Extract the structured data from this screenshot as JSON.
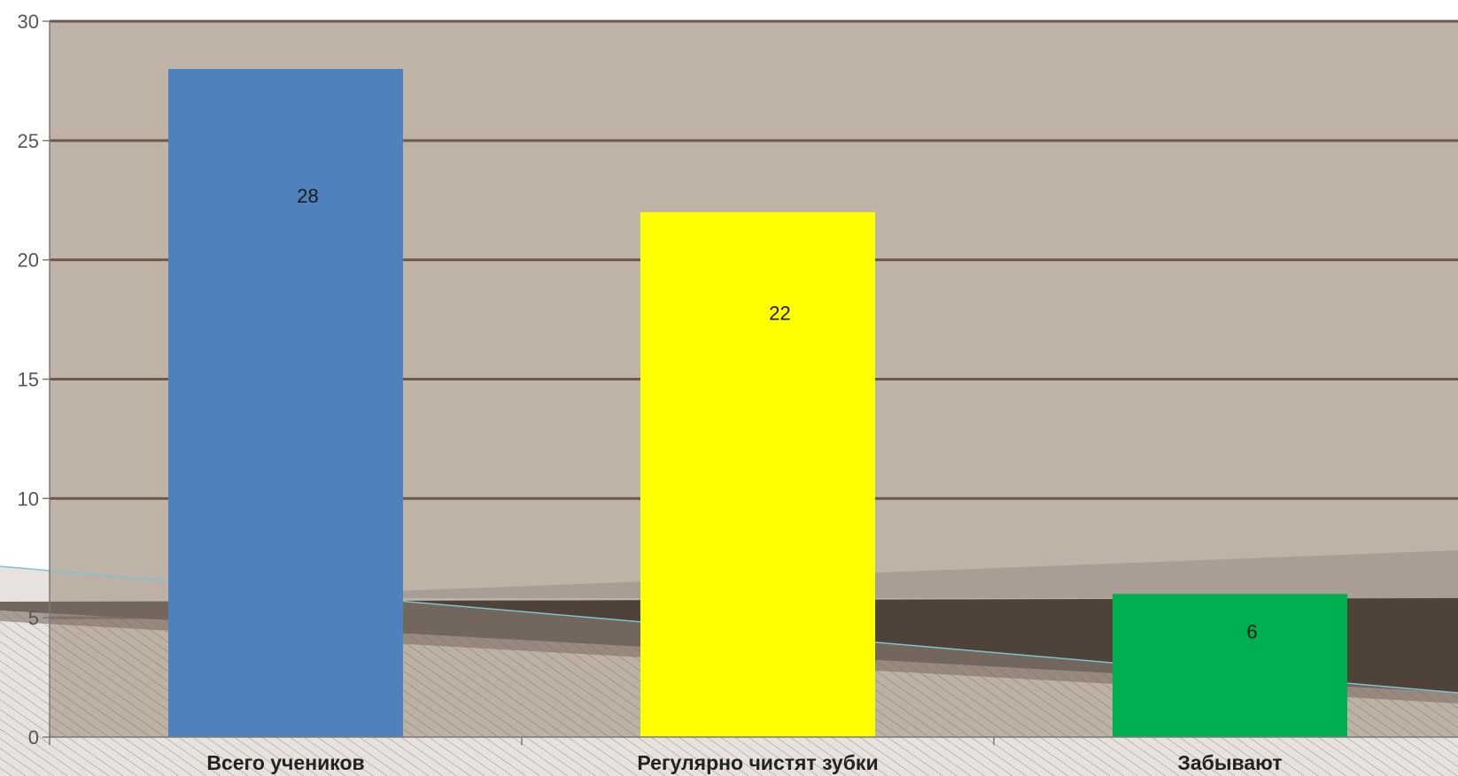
{
  "chart_data": {
    "type": "bar",
    "categories": [
      "Всего учеников",
      "Регулярно чистят зубки",
      "Забывают"
    ],
    "values": [
      28,
      22,
      6
    ],
    "bar_colors": [
      "#4f81bd",
      "#ffff00",
      "#00b050"
    ],
    "ylim": [
      0,
      30
    ],
    "yticks": [
      0,
      5,
      10,
      15,
      20,
      25,
      30
    ],
    "title": "",
    "xlabel": "",
    "ylabel": "",
    "grid": true,
    "legend": "none",
    "plot_background": "#bfb2a7",
    "gridline_color": "#6b5a4e"
  }
}
